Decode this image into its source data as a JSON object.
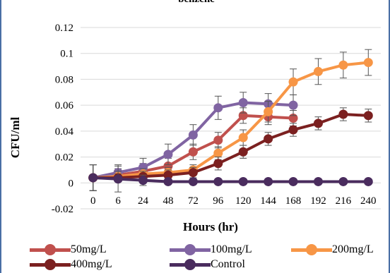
{
  "chart_data": {
    "type": "line",
    "title": "benzene",
    "xlabel": "Hours (hr)",
    "ylabel": "CFU/ml",
    "categories": [
      "0",
      "6",
      "24",
      "48",
      "72",
      "96",
      "120",
      "144",
      "168",
      "192",
      "216",
      "240"
    ],
    "y_ticks": [
      "0.12",
      "0.1",
      "0.08",
      "0.06",
      "0.04",
      "0.02",
      "0",
      "-0.02"
    ],
    "ylim": [
      -0.02,
      0.12
    ],
    "grid": "horizontal",
    "legend_position": "bottom",
    "series": [
      {
        "name": "50mg/L",
        "color": "#c0504d",
        "values": [
          0.004,
          0.006,
          0.009,
          0.013,
          0.024,
          0.033,
          0.052,
          0.051,
          0.05,
          null,
          null,
          null
        ],
        "errors": [
          0.01,
          0.005,
          0.006,
          0.006,
          0.006,
          0.006,
          0.006,
          0.006,
          0.006,
          null,
          null,
          null
        ]
      },
      {
        "name": "100mg/L",
        "color": "#8064a2",
        "values": [
          0.004,
          0.008,
          0.012,
          0.022,
          0.037,
          0.058,
          0.062,
          0.061,
          0.06,
          null,
          null,
          null
        ],
        "errors": [
          0.01,
          0.006,
          0.007,
          0.008,
          0.008,
          0.009,
          0.008,
          0.008,
          0.008,
          null,
          null,
          null
        ]
      },
      {
        "name": "200mg/L",
        "color": "#f79646",
        "values": [
          0.004,
          0.005,
          0.007,
          0.008,
          0.01,
          0.023,
          0.035,
          0.055,
          0.078,
          0.086,
          0.091,
          0.093
        ],
        "errors": [
          0.01,
          0.004,
          0.004,
          0.004,
          0.004,
          0.005,
          0.006,
          0.008,
          0.01,
          0.01,
          0.01,
          0.01
        ]
      },
      {
        "name": "400mg/L",
        "color": "#7b2020",
        "values": [
          0.004,
          0.004,
          0.005,
          0.006,
          0.008,
          0.015,
          0.024,
          0.034,
          0.041,
          0.046,
          0.053,
          0.052
        ],
        "errors": [
          0.01,
          0.003,
          0.004,
          0.004,
          0.004,
          0.005,
          0.005,
          0.005,
          0.005,
          0.005,
          0.005,
          0.005
        ]
      },
      {
        "name": "Control",
        "color": "#4a2c5e",
        "values": [
          0.004,
          0.003,
          0.002,
          0.001,
          0.001,
          0.001,
          0.001,
          0.001,
          0.001,
          0.001,
          0.001,
          0.001
        ],
        "errors": [
          0.01,
          0.01,
          0.004,
          0.002,
          0.001,
          0.001,
          0.001,
          0.001,
          0.001,
          0.001,
          0.001,
          0.001
        ]
      }
    ]
  }
}
